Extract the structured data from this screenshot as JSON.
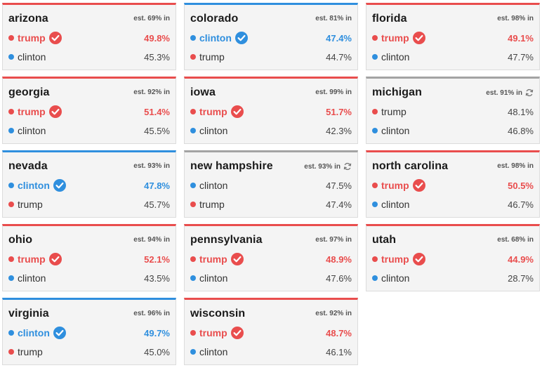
{
  "colors": {
    "rep": "#e94d4d",
    "dem": "#2f8fde",
    "undecided": "#a3a3a3"
  },
  "states": [
    {
      "name": "arizona",
      "est": "est. 69% in",
      "status": "rep",
      "refresh": false,
      "rows": [
        {
          "cand": "trump",
          "party": "rep",
          "pct": "49.8%",
          "winner": true
        },
        {
          "cand": "clinton",
          "party": "dem",
          "pct": "45.3%",
          "winner": false
        }
      ]
    },
    {
      "name": "colorado",
      "est": "est. 81% in",
      "status": "dem",
      "refresh": false,
      "rows": [
        {
          "cand": "clinton",
          "party": "dem",
          "pct": "47.4%",
          "winner": true
        },
        {
          "cand": "trump",
          "party": "rep",
          "pct": "44.7%",
          "winner": false
        }
      ]
    },
    {
      "name": "florida",
      "est": "est. 98% in",
      "status": "rep",
      "refresh": false,
      "rows": [
        {
          "cand": "trump",
          "party": "rep",
          "pct": "49.1%",
          "winner": true
        },
        {
          "cand": "clinton",
          "party": "dem",
          "pct": "47.7%",
          "winner": false
        }
      ]
    },
    {
      "name": "georgia",
      "est": "est. 92% in",
      "status": "rep",
      "refresh": false,
      "rows": [
        {
          "cand": "trump",
          "party": "rep",
          "pct": "51.4%",
          "winner": true
        },
        {
          "cand": "clinton",
          "party": "dem",
          "pct": "45.5%",
          "winner": false
        }
      ]
    },
    {
      "name": "iowa",
      "est": "est. 99% in",
      "status": "rep",
      "refresh": false,
      "rows": [
        {
          "cand": "trump",
          "party": "rep",
          "pct": "51.7%",
          "winner": true
        },
        {
          "cand": "clinton",
          "party": "dem",
          "pct": "42.3%",
          "winner": false
        }
      ]
    },
    {
      "name": "michigan",
      "est": "est. 91% in",
      "status": "gray",
      "refresh": true,
      "rows": [
        {
          "cand": "trump",
          "party": "rep",
          "pct": "48.1%",
          "winner": false
        },
        {
          "cand": "clinton",
          "party": "dem",
          "pct": "46.8%",
          "winner": false
        }
      ]
    },
    {
      "name": "nevada",
      "est": "est. 93% in",
      "status": "dem",
      "refresh": false,
      "rows": [
        {
          "cand": "clinton",
          "party": "dem",
          "pct": "47.8%",
          "winner": true
        },
        {
          "cand": "trump",
          "party": "rep",
          "pct": "45.7%",
          "winner": false
        }
      ]
    },
    {
      "name": "new hampshire",
      "est": "est. 93% in",
      "status": "gray",
      "refresh": true,
      "rows": [
        {
          "cand": "clinton",
          "party": "dem",
          "pct": "47.5%",
          "winner": false
        },
        {
          "cand": "trump",
          "party": "rep",
          "pct": "47.4%",
          "winner": false
        }
      ]
    },
    {
      "name": "north carolina",
      "est": "est. 98% in",
      "status": "rep",
      "refresh": false,
      "rows": [
        {
          "cand": "trump",
          "party": "rep",
          "pct": "50.5%",
          "winner": true
        },
        {
          "cand": "clinton",
          "party": "dem",
          "pct": "46.7%",
          "winner": false
        }
      ]
    },
    {
      "name": "ohio",
      "est": "est. 94% in",
      "status": "rep",
      "refresh": false,
      "rows": [
        {
          "cand": "trump",
          "party": "rep",
          "pct": "52.1%",
          "winner": true
        },
        {
          "cand": "clinton",
          "party": "dem",
          "pct": "43.5%",
          "winner": false
        }
      ]
    },
    {
      "name": "pennsylvania",
      "est": "est. 97% in",
      "status": "rep",
      "refresh": false,
      "rows": [
        {
          "cand": "trump",
          "party": "rep",
          "pct": "48.9%",
          "winner": true
        },
        {
          "cand": "clinton",
          "party": "dem",
          "pct": "47.6%",
          "winner": false
        }
      ]
    },
    {
      "name": "utah",
      "est": "est. 68% in",
      "status": "rep",
      "refresh": false,
      "rows": [
        {
          "cand": "trump",
          "party": "rep",
          "pct": "44.9%",
          "winner": true
        },
        {
          "cand": "clinton",
          "party": "dem",
          "pct": "28.7%",
          "winner": false
        }
      ]
    },
    {
      "name": "virginia",
      "est": "est. 96% in",
      "status": "dem",
      "refresh": false,
      "rows": [
        {
          "cand": "clinton",
          "party": "dem",
          "pct": "49.7%",
          "winner": true
        },
        {
          "cand": "trump",
          "party": "rep",
          "pct": "45.0%",
          "winner": false
        }
      ]
    },
    {
      "name": "wisconsin",
      "est": "est. 92% in",
      "status": "rep",
      "refresh": false,
      "rows": [
        {
          "cand": "trump",
          "party": "rep",
          "pct": "48.7%",
          "winner": true
        },
        {
          "cand": "clinton",
          "party": "dem",
          "pct": "46.1%",
          "winner": false
        }
      ]
    }
  ]
}
